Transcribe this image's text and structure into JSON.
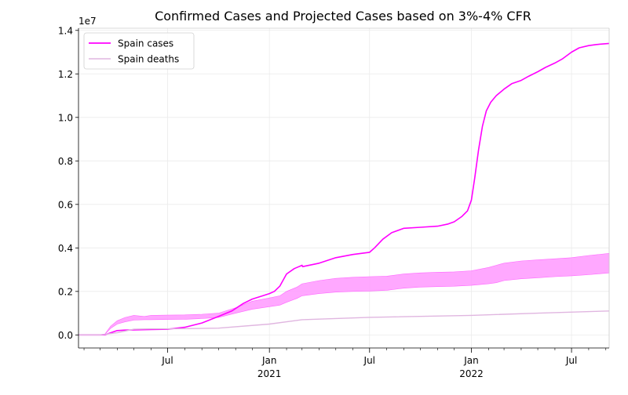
{
  "chart_data": {
    "type": "line",
    "title": "Confirmed Cases and Projected Cases based on 3%-4% CFR",
    "xlabel": "",
    "ylabel": "",
    "y_offset_label": "1e7",
    "ylim": [
      -0.06,
      1.41
    ],
    "xlim": [
      "2020-01-22",
      "2022-09-07"
    ],
    "grid": true,
    "legend_position": "upper left",
    "y_ticks": [
      {
        "value": 0.0,
        "label": "0.0"
      },
      {
        "value": 0.2,
        "label": "0.2"
      },
      {
        "value": 0.4,
        "label": "0.4"
      },
      {
        "value": 0.6,
        "label": "0.6"
      },
      {
        "value": 0.8,
        "label": "0.8"
      },
      {
        "value": 1.0,
        "label": "1.0"
      },
      {
        "value": 1.2,
        "label": "1.2"
      },
      {
        "value": 1.4,
        "label": "1.4"
      }
    ],
    "x_major_ticks": [
      {
        "date": "2020-07-01",
        "label": "Jul",
        "sublabel": ""
      },
      {
        "date": "2021-01-01",
        "label": "Jan",
        "sublabel": "2021"
      },
      {
        "date": "2021-07-01",
        "label": "Jul",
        "sublabel": ""
      },
      {
        "date": "2022-01-01",
        "label": "Jan",
        "sublabel": "2022"
      },
      {
        "date": "2022-07-01",
        "label": "Jul",
        "sublabel": ""
      }
    ],
    "x_minor_ticks": [
      "2020-02-01",
      "2020-03-01",
      "2020-04-01",
      "2020-05-01",
      "2020-06-01",
      "2020-08-01",
      "2020-09-01",
      "2020-10-01",
      "2020-11-01",
      "2020-12-01",
      "2021-02-01",
      "2021-03-01",
      "2021-04-01",
      "2021-05-01",
      "2021-06-01",
      "2021-08-01",
      "2021-09-01",
      "2021-10-01",
      "2021-11-01",
      "2021-12-01",
      "2022-02-01",
      "2022-03-01",
      "2022-04-01",
      "2022-05-01",
      "2022-06-01",
      "2022-08-01",
      "2022-09-01"
    ],
    "series": [
      {
        "name": "Spain cases",
        "color": "#ff00ff",
        "x": [
          "2020-01-22",
          "2020-03-01",
          "2020-03-10",
          "2020-03-20",
          "2020-04-01",
          "2020-04-15",
          "2020-05-01",
          "2020-06-01",
          "2020-07-01",
          "2020-08-01",
          "2020-09-01",
          "2020-10-01",
          "2020-10-25",
          "2020-11-15",
          "2020-12-01",
          "2020-12-20",
          "2021-01-01",
          "2021-01-10",
          "2021-01-20",
          "2021-02-01",
          "2021-02-15",
          "2021-03-01",
          "2021-03-02",
          "2021-04-01",
          "2021-05-01",
          "2021-06-01",
          "2021-07-01",
          "2021-07-10",
          "2021-07-25",
          "2021-08-10",
          "2021-09-01",
          "2021-10-01",
          "2021-11-01",
          "2021-11-20",
          "2021-12-01",
          "2021-12-15",
          "2021-12-25",
          "2022-01-01",
          "2022-01-07",
          "2022-01-14",
          "2022-01-21",
          "2022-01-28",
          "2022-02-05",
          "2022-02-15",
          "2022-03-01",
          "2022-03-15",
          "2022-04-01",
          "2022-04-15",
          "2022-05-01",
          "2022-05-15",
          "2022-06-01",
          "2022-06-15",
          "2022-07-01",
          "2022-07-15",
          "2022-08-01",
          "2022-08-15",
          "2022-09-07"
        ],
        "y": [
          0.0,
          0.0,
          0.001,
          0.01,
          0.02,
          0.022,
          0.023,
          0.025,
          0.026,
          0.035,
          0.055,
          0.085,
          0.11,
          0.145,
          0.165,
          0.18,
          0.19,
          0.2,
          0.225,
          0.28,
          0.305,
          0.32,
          0.314,
          0.33,
          0.355,
          0.37,
          0.38,
          0.4,
          0.44,
          0.47,
          0.49,
          0.495,
          0.5,
          0.51,
          0.52,
          0.545,
          0.57,
          0.62,
          0.72,
          0.85,
          0.96,
          1.03,
          1.07,
          1.1,
          1.13,
          1.155,
          1.17,
          1.19,
          1.21,
          1.23,
          1.25,
          1.27,
          1.3,
          1.32,
          1.33,
          1.335,
          1.34
        ]
      },
      {
        "name": "Spain deaths",
        "color": "#e0b6e0",
        "x": [
          "2020-01-22",
          "2020-03-01",
          "2020-04-01",
          "2020-05-01",
          "2020-06-01",
          "2020-07-01",
          "2020-10-01",
          "2021-01-01",
          "2021-03-01",
          "2021-07-01",
          "2022-01-01",
          "2022-05-01",
          "2022-09-07"
        ],
        "y": [
          0.0,
          0.0,
          0.01,
          0.026,
          0.028,
          0.028,
          0.031,
          0.05,
          0.07,
          0.081,
          0.09,
          0.1,
          0.11
        ]
      }
    ],
    "bands": [
      {
        "color": "#ff99ff",
        "x": [
          "2020-01-22",
          "2020-03-01",
          "2020-03-10",
          "2020-03-20",
          "2020-04-01",
          "2020-04-15",
          "2020-05-01",
          "2020-05-20",
          "2020-06-01",
          "2020-07-01",
          "2020-08-01",
          "2020-09-01",
          "2020-10-01",
          "2020-11-01",
          "2020-12-01",
          "2021-01-01",
          "2021-01-20",
          "2021-02-01",
          "2021-02-20",
          "2021-03-01",
          "2021-04-01",
          "2021-05-01",
          "2021-06-01",
          "2021-07-01",
          "2021-08-01",
          "2021-09-01",
          "2021-10-01",
          "2021-11-01",
          "2021-12-01",
          "2022-01-01",
          "2022-02-01",
          "2022-02-15",
          "2022-03-01",
          "2022-04-01",
          "2022-05-01",
          "2022-06-01",
          "2022-07-01",
          "2022-08-01",
          "2022-09-07"
        ],
        "upper": [
          0.0,
          0.0,
          0.005,
          0.04,
          0.065,
          0.08,
          0.09,
          0.085,
          0.09,
          0.091,
          0.092,
          0.095,
          0.1,
          0.125,
          0.155,
          0.17,
          0.18,
          0.2,
          0.22,
          0.235,
          0.25,
          0.26,
          0.265,
          0.268,
          0.27,
          0.28,
          0.285,
          0.288,
          0.29,
          0.295,
          0.31,
          0.32,
          0.33,
          0.34,
          0.345,
          0.35,
          0.355,
          0.365,
          0.375
        ],
        "lower": [
          0.0,
          0.0,
          0.003,
          0.03,
          0.05,
          0.06,
          0.068,
          0.07,
          0.07,
          0.071,
          0.072,
          0.075,
          0.08,
          0.1,
          0.118,
          0.13,
          0.137,
          0.15,
          0.168,
          0.18,
          0.19,
          0.197,
          0.2,
          0.202,
          0.205,
          0.215,
          0.22,
          0.222,
          0.224,
          0.228,
          0.235,
          0.24,
          0.25,
          0.258,
          0.263,
          0.268,
          0.272,
          0.277,
          0.285
        ]
      }
    ]
  }
}
